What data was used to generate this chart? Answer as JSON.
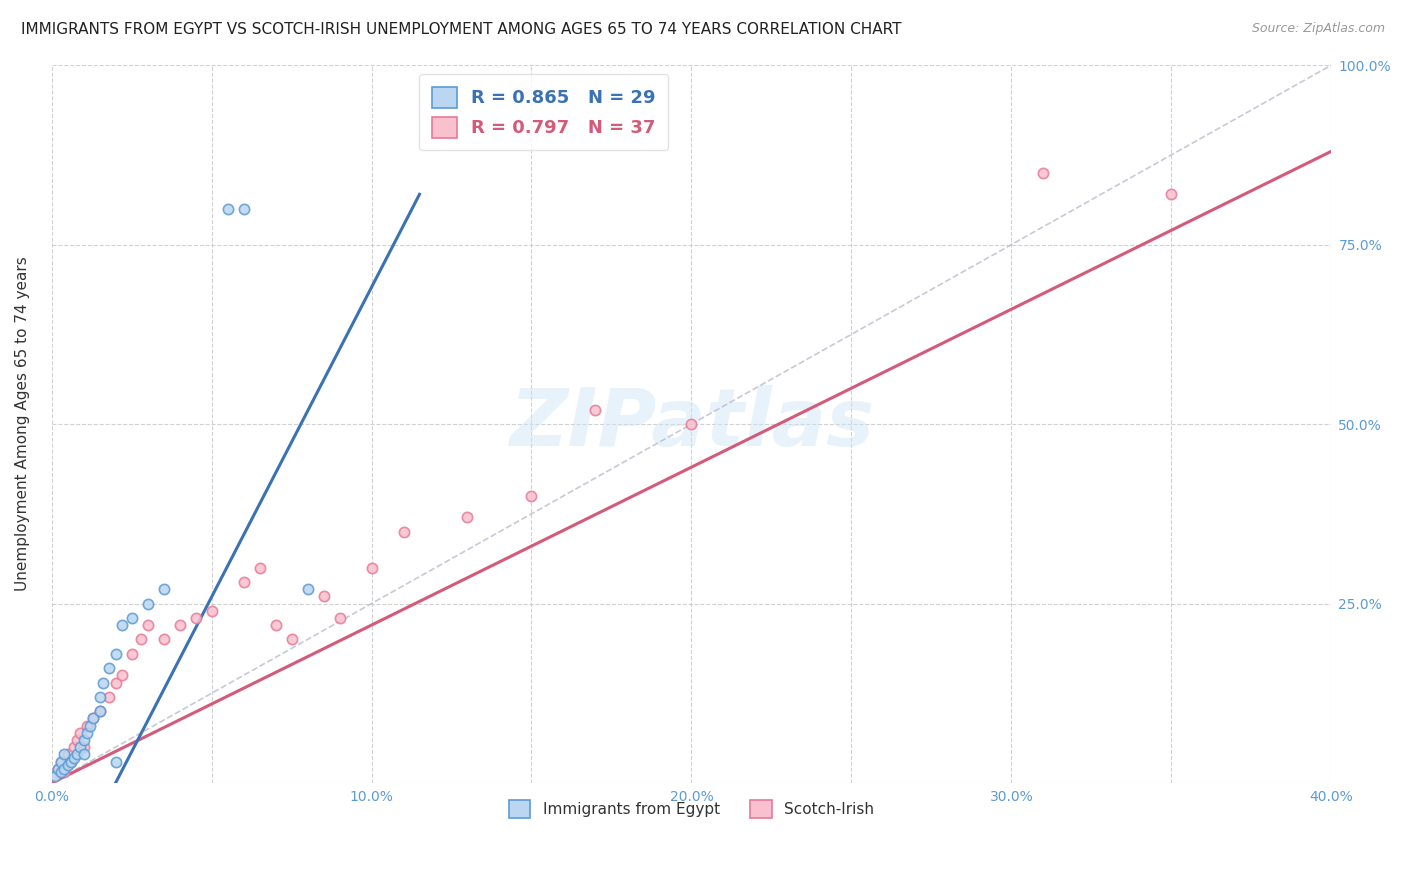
{
  "title": "IMMIGRANTS FROM EGYPT VS SCOTCH-IRISH UNEMPLOYMENT AMONG AGES 65 TO 74 YEARS CORRELATION CHART",
  "source": "Source: ZipAtlas.com",
  "ylabel": "Unemployment Among Ages 65 to 74 years",
  "xlim": [
    0.0,
    0.4
  ],
  "ylim": [
    0.0,
    1.0
  ],
  "xticks": [
    0.0,
    0.05,
    0.1,
    0.15,
    0.2,
    0.25,
    0.3,
    0.35,
    0.4
  ],
  "xticklabels": [
    "0.0%",
    "",
    "10.0%",
    "",
    "20.0%",
    "",
    "30.0%",
    "",
    "40.0%"
  ],
  "yticks": [
    0.0,
    0.25,
    0.5,
    0.75,
    1.0
  ],
  "yticklabels_right": [
    "",
    "25.0%",
    "50.0%",
    "75.0%",
    "100.0%"
  ],
  "egypt_color": "#bad6f0",
  "egypt_edge_color": "#5b9bd5",
  "scotch_color": "#f9c0cf",
  "scotch_edge_color": "#e87a96",
  "egypt_R": 0.865,
  "egypt_N": 29,
  "scotch_R": 0.797,
  "scotch_N": 37,
  "legend_label_egypt": "Immigrants from Egypt",
  "legend_label_scotch": "Scotch-Irish",
  "watermark": "ZIPatlas",
  "egypt_line_color": "#3a72b5",
  "scotch_line_color": "#d45a7a",
  "egypt_line_x": [
    0.02,
    0.115
  ],
  "egypt_line_y": [
    0.0,
    0.82
  ],
  "scotch_line_x": [
    0.0,
    0.4
  ],
  "scotch_line_y": [
    0.0,
    0.88
  ],
  "diag_line_x": [
    0.0,
    0.4
  ],
  "diag_line_y": [
    0.0,
    1.0
  ],
  "diag_color": "#bbbbcc",
  "grid_color": "#cccccc",
  "title_color": "#222222",
  "axis_tick_color": "#5b9bd5",
  "marker_size": 55,
  "egypt_points_x": [
    0.001,
    0.002,
    0.003,
    0.003,
    0.004,
    0.004,
    0.005,
    0.006,
    0.007,
    0.008,
    0.009,
    0.01,
    0.011,
    0.012,
    0.013,
    0.015,
    0.016,
    0.018,
    0.02,
    0.022,
    0.025,
    0.03,
    0.035,
    0.055,
    0.06,
    0.08,
    0.01,
    0.015,
    0.02
  ],
  "egypt_points_y": [
    0.01,
    0.02,
    0.015,
    0.03,
    0.02,
    0.04,
    0.025,
    0.03,
    0.035,
    0.04,
    0.05,
    0.06,
    0.07,
    0.08,
    0.09,
    0.12,
    0.14,
    0.16,
    0.18,
    0.22,
    0.23,
    0.25,
    0.27,
    0.8,
    0.8,
    0.27,
    0.04,
    0.1,
    0.03
  ],
  "scotch_points_x": [
    0.001,
    0.002,
    0.003,
    0.004,
    0.005,
    0.006,
    0.007,
    0.008,
    0.009,
    0.01,
    0.011,
    0.013,
    0.015,
    0.018,
    0.02,
    0.022,
    0.025,
    0.028,
    0.03,
    0.035,
    0.04,
    0.045,
    0.05,
    0.06,
    0.065,
    0.07,
    0.075,
    0.085,
    0.09,
    0.1,
    0.11,
    0.13,
    0.15,
    0.17,
    0.2,
    0.31,
    0.35
  ],
  "scotch_points_y": [
    0.01,
    0.02,
    0.03,
    0.015,
    0.04,
    0.03,
    0.05,
    0.06,
    0.07,
    0.05,
    0.08,
    0.09,
    0.1,
    0.12,
    0.14,
    0.15,
    0.18,
    0.2,
    0.22,
    0.2,
    0.22,
    0.23,
    0.24,
    0.28,
    0.3,
    0.22,
    0.2,
    0.26,
    0.23,
    0.3,
    0.35,
    0.37,
    0.4,
    0.52,
    0.5,
    0.85,
    0.82
  ]
}
